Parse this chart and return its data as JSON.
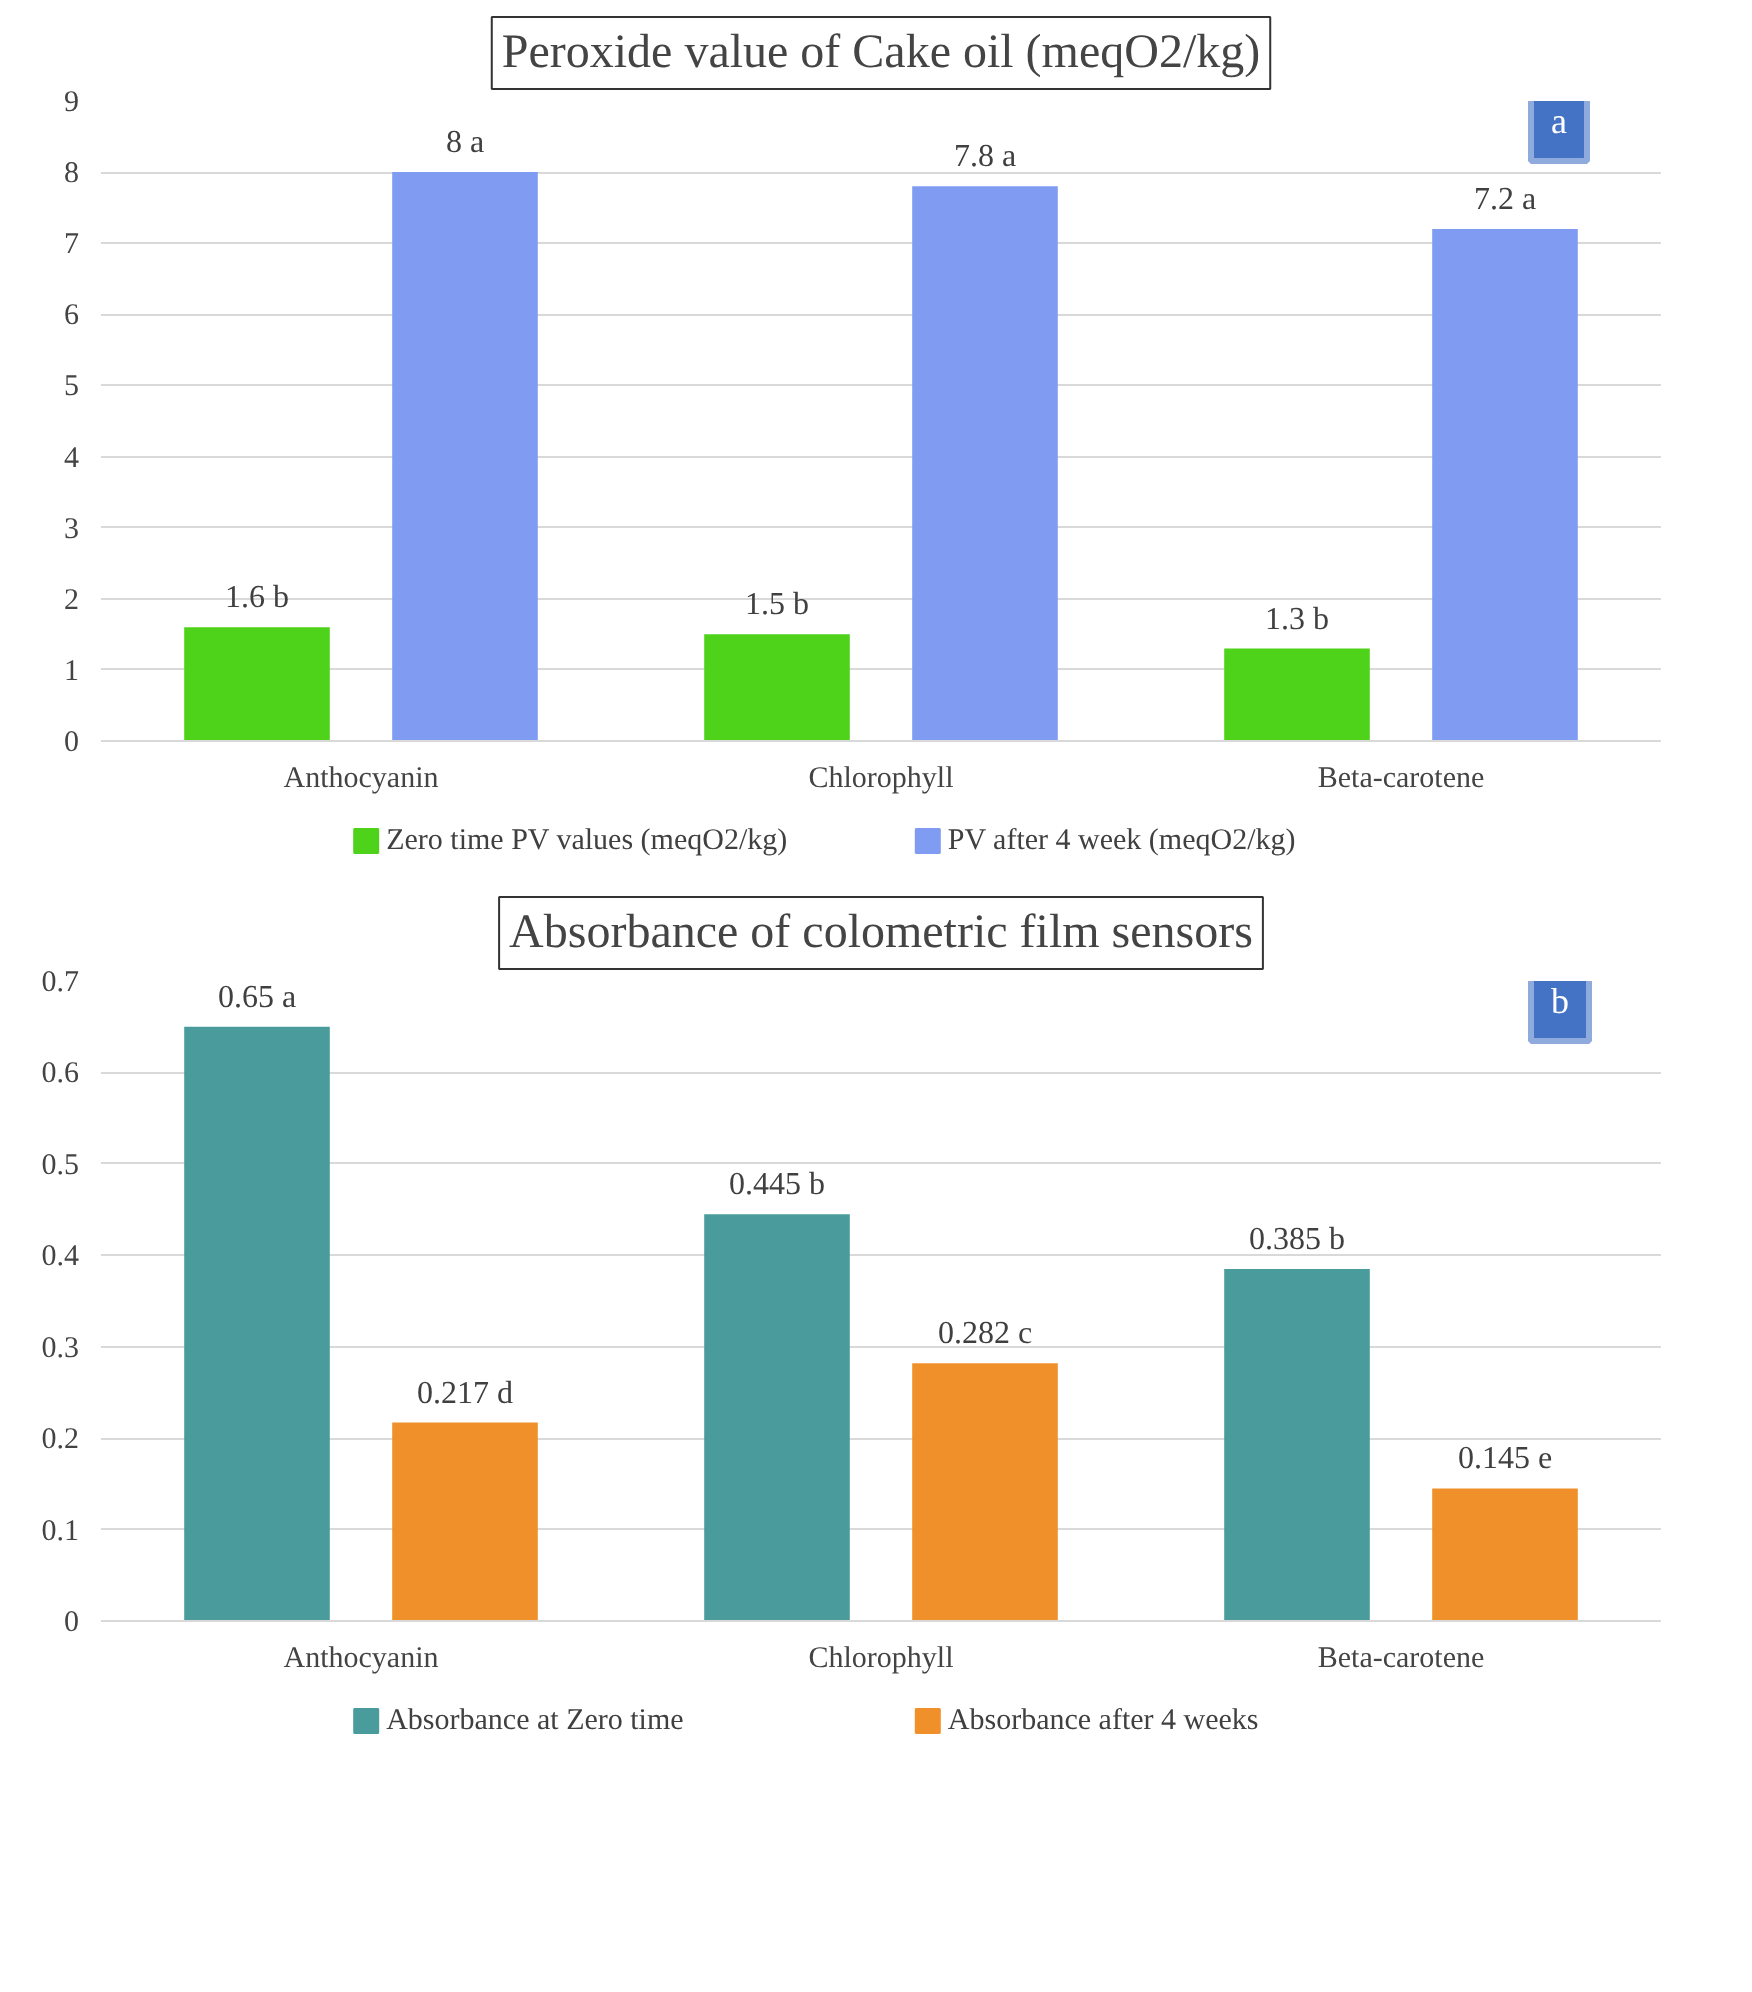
{
  "chart_data": [
    {
      "type": "bar",
      "title": "Peroxide value of Cake oil (meqO2/kg)",
      "categories": [
        "Anthocyanin",
        "Chlorophyll",
        "Beta-carotene"
      ],
      "series": [
        {
          "name": "Zero time PV values (meqO2/kg)",
          "color": "#4fd21a",
          "values": [
            1.6,
            1.5,
            1.3
          ],
          "value_labels": [
            "1.6 b",
            "1.5 b",
            "1.3 b"
          ]
        },
        {
          "name": "PV after 4 week (meqO2/kg)",
          "color": "#7f9cf2",
          "values": [
            8,
            7.8,
            7.2
          ],
          "value_labels": [
            "8 a",
            "7.8 a",
            "7.2 a"
          ]
        }
      ],
      "ylim": [
        0,
        9
      ],
      "yticks": [
        0,
        1,
        2,
        3,
        4,
        5,
        6,
        7,
        8,
        9
      ],
      "grid": "y",
      "legend": "bottom",
      "annotations": [
        "a"
      ]
    },
    {
      "type": "bar",
      "title": "Absorbance of colometric film sensors",
      "categories": [
        "Anthocyanin",
        "Chlorophyll",
        "Beta-carotene"
      ],
      "series": [
        {
          "name": "Absorbance at Zero time",
          "color": "#4a9c9c",
          "values": [
            0.65,
            0.445,
            0.385
          ],
          "value_labels": [
            "0.65 a",
            "0.445 b",
            "0.385 b"
          ]
        },
        {
          "name": "Absorbance after 4 weeks",
          "color": "#f0902a",
          "values": [
            0.217,
            0.282,
            0.145
          ],
          "value_labels": [
            "0.217 d",
            "0.282 c",
            "0.145 e"
          ]
        }
      ],
      "ylim": [
        0,
        0.7
      ],
      "yticks": [
        0,
        0.1,
        0.2,
        0.3,
        0.4,
        0.5,
        0.6,
        0.7
      ],
      "grid": "y",
      "legend": "bottom",
      "annotations": [
        "b"
      ]
    }
  ]
}
